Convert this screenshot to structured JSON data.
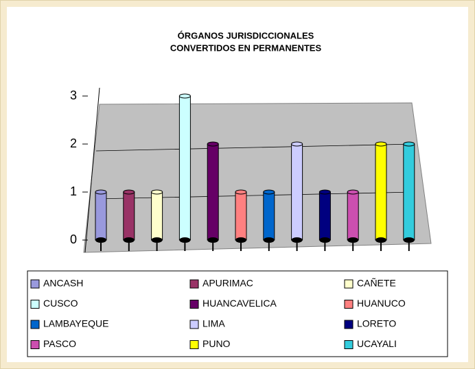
{
  "chart_data": {
    "type": "bar",
    "title": [
      "ÓRGANOS JURISDICCIONALES",
      "CONVERTIDOS EN PERMANENTES"
    ],
    "ylim": [
      0,
      3
    ],
    "yticks": [
      0,
      1,
      2,
      3
    ],
    "grid": true,
    "series": [
      {
        "name": "ANCASH",
        "color": "#9999dd",
        "values": [
          1
        ]
      },
      {
        "name": "APURIMAC",
        "color": "#993366",
        "values": [
          1
        ]
      },
      {
        "name": "CAÑETE",
        "color": "#ffffcc",
        "values": [
          1
        ]
      },
      {
        "name": "CUSCO",
        "color": "#ccffff",
        "values": [
          3
        ]
      },
      {
        "name": "HUANCAVELICA",
        "color": "#660066",
        "values": [
          2
        ]
      },
      {
        "name": "HUANUCO",
        "color": "#ff8080",
        "values": [
          1
        ]
      },
      {
        "name": "LAMBAYEQUE",
        "color": "#0066cc",
        "values": [
          1
        ]
      },
      {
        "name": "LIMA",
        "color": "#ccccff",
        "values": [
          2
        ]
      },
      {
        "name": "LORETO",
        "color": "#000080",
        "values": [
          1
        ]
      },
      {
        "name": "PASCO",
        "color": "#cc4fb0",
        "values": [
          1
        ]
      },
      {
        "name": "PUNO",
        "color": "#ffff00",
        "values": [
          2
        ]
      },
      {
        "name": "UCAYALI",
        "color": "#33ccdd",
        "values": [
          2
        ]
      }
    ]
  }
}
